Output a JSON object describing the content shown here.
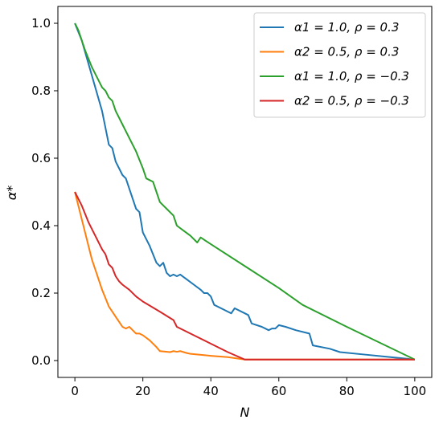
{
  "chart_data": {
    "type": "line",
    "xlabel": "N",
    "ylabel": "α*",
    "xlim": [
      -5,
      105
    ],
    "ylim": [
      -0.05,
      1.05
    ],
    "x_ticks": [
      0,
      20,
      40,
      60,
      80,
      100
    ],
    "y_ticks": [
      0.0,
      0.2,
      0.4,
      0.6,
      0.8,
      1.0
    ],
    "x_tick_labels": [
      "0",
      "20",
      "40",
      "60",
      "80",
      "100"
    ],
    "y_tick_labels": [
      "0.0",
      "0.2",
      "0.4",
      "0.6",
      "0.8",
      "1.0"
    ],
    "legend_position": "top-right",
    "grid": false,
    "series": [
      {
        "name": "α1 = 1.0, ρ = 0.3",
        "color": "#1f77b4",
        "points": [
          [
            0,
            1.0
          ],
          [
            2,
            0.95
          ],
          [
            4,
            0.88
          ],
          [
            6,
            0.81
          ],
          [
            8,
            0.74
          ],
          [
            10,
            0.64
          ],
          [
            11,
            0.63
          ],
          [
            12,
            0.59
          ],
          [
            14,
            0.55
          ],
          [
            15,
            0.54
          ],
          [
            16,
            0.51
          ],
          [
            18,
            0.45
          ],
          [
            19,
            0.44
          ],
          [
            20,
            0.38
          ],
          [
            22,
            0.34
          ],
          [
            24,
            0.29
          ],
          [
            25,
            0.28
          ],
          [
            26,
            0.29
          ],
          [
            27,
            0.26
          ],
          [
            28,
            0.25
          ],
          [
            29,
            0.255
          ],
          [
            30,
            0.25
          ],
          [
            31,
            0.255
          ],
          [
            33,
            0.24
          ],
          [
            35,
            0.225
          ],
          [
            37,
            0.21
          ],
          [
            38,
            0.2
          ],
          [
            39,
            0.2
          ],
          [
            40,
            0.19
          ],
          [
            41,
            0.165
          ],
          [
            43,
            0.155
          ],
          [
            45,
            0.145
          ],
          [
            46,
            0.14
          ],
          [
            47,
            0.155
          ],
          [
            50,
            0.14
          ],
          [
            51,
            0.135
          ],
          [
            52,
            0.11
          ],
          [
            55,
            0.1
          ],
          [
            57,
            0.09
          ],
          [
            58,
            0.095
          ],
          [
            59,
            0.095
          ],
          [
            60,
            0.105
          ],
          [
            62,
            0.1
          ],
          [
            65,
            0.09
          ],
          [
            69,
            0.08
          ],
          [
            70,
            0.045
          ],
          [
            75,
            0.035
          ],
          [
            78,
            0.025
          ],
          [
            85,
            0.018
          ],
          [
            100,
            0.003
          ]
        ]
      },
      {
        "name": "α2 = 0.5, ρ = 0.3",
        "color": "#ff7f0e",
        "points": [
          [
            0,
            0.5
          ],
          [
            1,
            0.46
          ],
          [
            2,
            0.42
          ],
          [
            3,
            0.38
          ],
          [
            4,
            0.34
          ],
          [
            5,
            0.3
          ],
          [
            6,
            0.27
          ],
          [
            7,
            0.24
          ],
          [
            8,
            0.21
          ],
          [
            9,
            0.185
          ],
          [
            10,
            0.16
          ],
          [
            11,
            0.145
          ],
          [
            12,
            0.13
          ],
          [
            13,
            0.115
          ],
          [
            14,
            0.1
          ],
          [
            15,
            0.095
          ],
          [
            16,
            0.1
          ],
          [
            17,
            0.09
          ],
          [
            18,
            0.08
          ],
          [
            19,
            0.08
          ],
          [
            20,
            0.075
          ],
          [
            22,
            0.06
          ],
          [
            24,
            0.04
          ],
          [
            25,
            0.028
          ],
          [
            28,
            0.025
          ],
          [
            29,
            0.028
          ],
          [
            30,
            0.026
          ],
          [
            31,
            0.028
          ],
          [
            33,
            0.022
          ],
          [
            34,
            0.02
          ],
          [
            38,
            0.016
          ],
          [
            40,
            0.014
          ],
          [
            45,
            0.01
          ],
          [
            50,
            0.003
          ],
          [
            100,
            0.003
          ]
        ]
      },
      {
        "name": "α1 = 1.0, ρ = −0.3",
        "color": "#2ca02c",
        "points": [
          [
            0,
            1.0
          ],
          [
            1,
            0.98
          ],
          [
            3,
            0.92
          ],
          [
            5,
            0.87
          ],
          [
            7,
            0.83
          ],
          [
            8,
            0.81
          ],
          [
            9,
            0.8
          ],
          [
            10,
            0.78
          ],
          [
            11,
            0.77
          ],
          [
            12,
            0.74
          ],
          [
            14,
            0.7
          ],
          [
            16,
            0.66
          ],
          [
            18,
            0.62
          ],
          [
            20,
            0.57
          ],
          [
            21,
            0.54
          ],
          [
            22,
            0.535
          ],
          [
            23,
            0.53
          ],
          [
            24,
            0.5
          ],
          [
            25,
            0.47
          ],
          [
            26,
            0.46
          ],
          [
            27,
            0.45
          ],
          [
            29,
            0.43
          ],
          [
            30,
            0.4
          ],
          [
            32,
            0.385
          ],
          [
            34,
            0.37
          ],
          [
            36,
            0.35
          ],
          [
            37,
            0.365
          ],
          [
            40,
            0.345
          ],
          [
            50,
            0.28
          ],
          [
            60,
            0.215
          ],
          [
            67,
            0.165
          ],
          [
            80,
            0.1
          ],
          [
            100,
            0.003
          ]
        ]
      },
      {
        "name": "α2 = 0.5, ρ = −0.3",
        "color": "#d62728",
        "points": [
          [
            0,
            0.5
          ],
          [
            1,
            0.48
          ],
          [
            2,
            0.46
          ],
          [
            4,
            0.41
          ],
          [
            6,
            0.37
          ],
          [
            8,
            0.33
          ],
          [
            9,
            0.315
          ],
          [
            10,
            0.285
          ],
          [
            11,
            0.275
          ],
          [
            12,
            0.25
          ],
          [
            13,
            0.235
          ],
          [
            14,
            0.225
          ],
          [
            16,
            0.21
          ],
          [
            18,
            0.19
          ],
          [
            20,
            0.175
          ],
          [
            25,
            0.145
          ],
          [
            29,
            0.12
          ],
          [
            30,
            0.1
          ],
          [
            35,
            0.075
          ],
          [
            40,
            0.05
          ],
          [
            45,
            0.025
          ],
          [
            50,
            0.003
          ],
          [
            100,
            0.003
          ]
        ]
      }
    ]
  }
}
